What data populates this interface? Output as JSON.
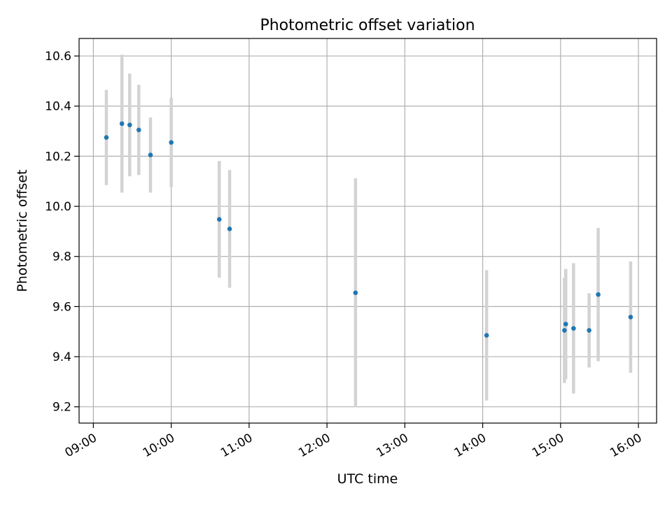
{
  "chart_data": {
    "type": "scatter",
    "title": "Photometric offset variation",
    "xlabel": "UTC time",
    "ylabel": "Photometric offset",
    "xlim": [
      "08:49",
      "16:14"
    ],
    "ylim": [
      9.135,
      10.67
    ],
    "grid": true,
    "x_ticks": [
      "09:00",
      "10:00",
      "11:00",
      "12:00",
      "13:00",
      "14:00",
      "15:00",
      "16:00"
    ],
    "y_ticks": [
      "9.2",
      "9.4",
      "9.6",
      "9.8",
      "10.0",
      "10.2",
      "10.4",
      "10.6"
    ],
    "series": [
      {
        "marker_color": "#1f77b4",
        "errorbar_color": "#d3d3d3",
        "points": [
          {
            "x": "09:10",
            "y": 10.275,
            "err": 0.19
          },
          {
            "x": "09:22",
            "y": 10.33,
            "err": 0.275
          },
          {
            "x": "09:28",
            "y": 10.325,
            "err": 0.205
          },
          {
            "x": "09:35",
            "y": 10.305,
            "err": 0.18
          },
          {
            "x": "09:44",
            "y": 10.205,
            "err": 0.15
          },
          {
            "x": "10:00",
            "y": 10.255,
            "err": 0.178
          },
          {
            "x": "10:37",
            "y": 9.948,
            "err": 0.233
          },
          {
            "x": "10:45",
            "y": 9.91,
            "err": 0.235
          },
          {
            "x": "12:22",
            "y": 9.655,
            "err": 0.457
          },
          {
            "x": "14:03",
            "y": 9.485,
            "err": 0.26
          },
          {
            "x": "15:03",
            "y": 9.505,
            "err": 0.21
          },
          {
            "x": "15:04",
            "y": 9.53,
            "err": 0.22
          },
          {
            "x": "15:10",
            "y": 9.513,
            "err": 0.26
          },
          {
            "x": "15:22",
            "y": 9.505,
            "err": 0.148
          },
          {
            "x": "15:29",
            "y": 9.648,
            "err": 0.266
          },
          {
            "x": "15:54",
            "y": 9.558,
            "err": 0.222
          }
        ]
      }
    ]
  }
}
